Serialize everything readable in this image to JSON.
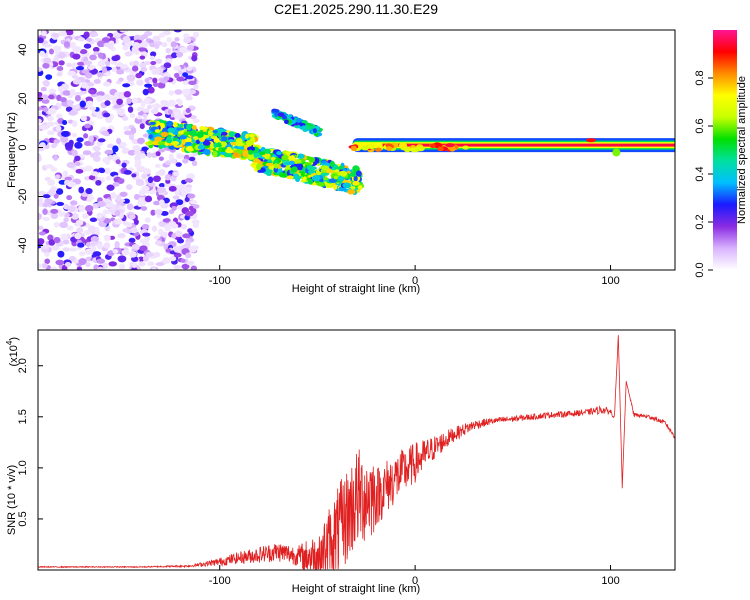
{
  "figure_title": "C2E1.2025.290.11.30.E29",
  "chart_data": [
    {
      "type": "heatmap",
      "title": "C2E1.2025.290.11.30.E29",
      "xlabel": "Height of straight line (km)",
      "ylabel": "Frequency (Hz)",
      "xlim": [
        -193,
        133
      ],
      "ylim": [
        -50,
        48
      ],
      "xticks": [
        -100,
        0,
        100
      ],
      "xtick_labels": [
        "-100",
        "0",
        "100"
      ],
      "yticks": [
        -40,
        -20,
        0,
        20,
        40
      ],
      "ytick_labels": [
        "-40",
        "-20",
        "0",
        "20",
        "40"
      ],
      "colorbar": {
        "label": "Normalized spectral amplitude",
        "range": [
          0,
          1
        ],
        "ticks": [
          0.0,
          0.2,
          0.4,
          0.6,
          0.8
        ],
        "tick_labels": [
          "0.0",
          "0.2",
          "0.4",
          "0.6",
          "0.8"
        ],
        "colormap": [
          "#ffffff",
          "#d9b3ff",
          "#8a2be2",
          "#1a1aff",
          "#00bfff",
          "#00e0a0",
          "#00e000",
          "#c8ff00",
          "#ffff00",
          "#ff8c00",
          "#ff0000",
          "#ff1493"
        ]
      },
      "features": {
        "noise_region_x": [
          -193,
          -112
        ],
        "noise_amplitude": 0.25,
        "scattered_branch_x": [
          -136,
          -28
        ],
        "scattered_branch_freq": [
          6,
          -14
        ],
        "carrier_x": [
          -32,
          133
        ],
        "carrier_freq": [
          -2,
          2
        ],
        "carrier_amplitude": 0.95,
        "upper_branch_x": [
          -72,
          -48
        ],
        "upper_branch_freq": [
          14,
          6
        ]
      }
    },
    {
      "type": "line",
      "xlabel": "Height of straight line (km)",
      "ylabel": "SNR (10 * v/v)",
      "multiplier_label": "(x10",
      "multiplier_exp": "4",
      "multiplier_close": ")",
      "color": "#e02020",
      "xlim": [
        -193,
        133
      ],
      "ylim": [
        0,
        2.35
      ],
      "xticks": [
        -100,
        0,
        100
      ],
      "xtick_labels": [
        "-100",
        "0",
        "100"
      ],
      "yticks": [
        0.5,
        1.0,
        1.5,
        2.0
      ],
      "ytick_labels": [
        "0.5",
        "1.0",
        "1.5",
        "2.0"
      ],
      "series": [
        {
          "name": "SNR",
          "x": [
            -193,
            -140,
            -115,
            -100,
            -90,
            -80,
            -70,
            -60,
            -50,
            -40,
            -30,
            -22,
            -20,
            -10,
            0,
            10,
            20,
            30,
            40,
            50,
            60,
            70,
            80,
            90,
            95,
            100,
            102,
            104,
            106,
            108,
            112,
            120,
            128,
            133
          ],
          "y": [
            0.03,
            0.03,
            0.04,
            0.08,
            0.12,
            0.15,
            0.18,
            0.14,
            0.12,
            0.35,
            0.7,
            0.75,
            0.72,
            0.9,
            1.05,
            1.2,
            1.33,
            1.42,
            1.46,
            1.48,
            1.5,
            1.52,
            1.53,
            1.55,
            1.57,
            1.55,
            1.5,
            2.3,
            0.8,
            1.85,
            1.52,
            1.5,
            1.44,
            1.3
          ],
          "noise": [
            0.005,
            0.005,
            0.01,
            0.04,
            0.06,
            0.08,
            0.1,
            0.1,
            0.25,
            0.45,
            0.5,
            0.45,
            0.3,
            0.25,
            0.2,
            0.12,
            0.07,
            0.05,
            0.03,
            0.03,
            0.03,
            0.03,
            0.03,
            0.03,
            0.04,
            0.03,
            0.02,
            0.0,
            0.0,
            0.0,
            0.02,
            0.02,
            0.02,
            0.02
          ]
        }
      ]
    }
  ]
}
